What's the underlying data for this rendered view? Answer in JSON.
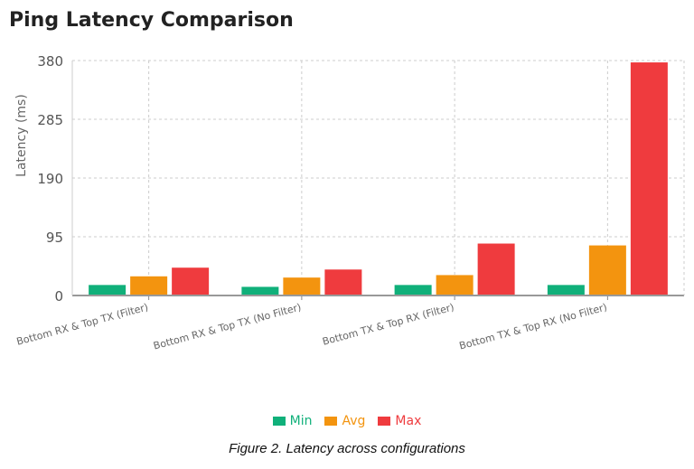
{
  "chart_data": {
    "type": "bar",
    "title": "Ping Latency Comparison",
    "ylabel": "Latency (ms)",
    "xlabel": "",
    "ylim": [
      0,
      380
    ],
    "yticks": [
      "0",
      "95",
      "190",
      "285",
      "380"
    ],
    "grid": true,
    "legend_position": "bottom",
    "categories": [
      "Bottom RX & Top TX (Filter)",
      "Bottom RX & Top TX (No Filter)",
      "Bottom TX & Top RX (Filter)",
      "Bottom TX & Top RX (No Filter)"
    ],
    "series": [
      {
        "name": "Min",
        "color": "#10b07a",
        "values": [
          17,
          14,
          17,
          17
        ]
      },
      {
        "name": "Avg",
        "color": "#f3940f",
        "values": [
          31,
          29,
          33,
          81
        ]
      },
      {
        "name": "Max",
        "color": "#ef3b3e",
        "values": [
          45,
          42,
          84,
          377
        ]
      }
    ]
  },
  "caption": "Figure 2. Latency across configurations"
}
